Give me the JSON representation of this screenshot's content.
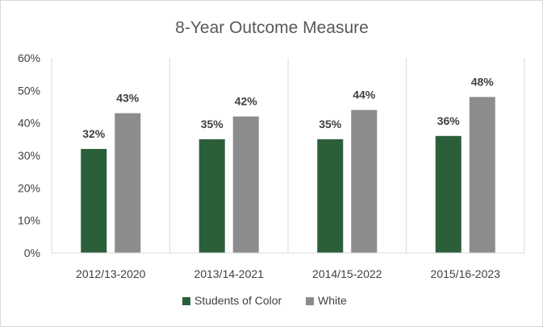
{
  "chart_data": {
    "type": "bar",
    "title": "8-Year Outcome Measure",
    "categories": [
      "2012/13-2020",
      "2013/14-2021",
      "2014/15-2022",
      "2015/16-2023"
    ],
    "series": [
      {
        "name": "Students of Color",
        "values": [
          32,
          35,
          35,
          36
        ],
        "labels": [
          "32%",
          "35%",
          "35%",
          "36%"
        ],
        "color": "#2b5f3a"
      },
      {
        "name": "White",
        "values": [
          43,
          42,
          44,
          48
        ],
        "labels": [
          "43%",
          "42%",
          "44%",
          "48%"
        ],
        "color": "#8c8c8c"
      }
    ],
    "ylim": [
      0,
      60
    ],
    "yticks": [
      "0%",
      "10%",
      "20%",
      "30%",
      "40%",
      "50%",
      "60%"
    ],
    "ytick_values": [
      0,
      10,
      20,
      30,
      40,
      50,
      60
    ],
    "legend_position": "bottom",
    "grid": false
  }
}
